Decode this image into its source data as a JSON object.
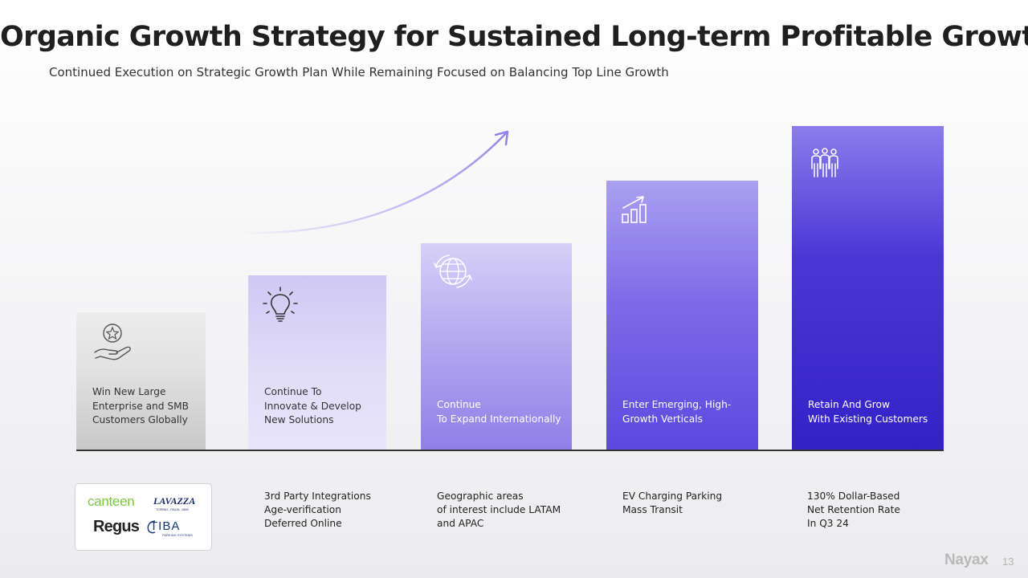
{
  "slide": {
    "title": "Organic Growth Strategy for Sustained Long-term Profitable Growth",
    "subtitle": "Continued Execution on Strategic Growth Plan While Remaining Focused on Balancing Top Line Growth"
  },
  "steps": [
    {
      "icon": "hand-star-icon",
      "label": "Win New Large\nEnterprise and SMB\nCustomers Globally"
    },
    {
      "icon": "lightbulb-icon",
      "label": "Continue To\nInnovate & Develop\nNew Solutions",
      "note": "3rd Party Integrations\nAge-verification\nDeferred Online"
    },
    {
      "icon": "globe-icon",
      "label": "Continue\nTo Expand Internationally",
      "note": "Geographic areas\nof interest include LATAM\nand APAC"
    },
    {
      "icon": "growth-chart-icon",
      "label": "Enter Emerging, High-\nGrowth Verticals",
      "note": "EV Charging Parking\nMass Transit"
    },
    {
      "icon": "people-group-icon",
      "label": "Retain And Grow\nWith Existing Customers",
      "note": "130% Dollar-Based\nNet Retention Rate\nIn Q3 24"
    }
  ],
  "customer_logos": {
    "canteen": "canteen",
    "lavazza": "LAVAZZA",
    "lavazza_tagline": "TORINO, ITALIA, 1895",
    "regus": "Regus",
    "tiba": "TIBA",
    "tiba_tagline": "PARKING SYSTEMS"
  },
  "footer": {
    "brand": "Nayax",
    "page_number": "13"
  },
  "colors": {
    "accent_dark": "#3222c6",
    "accent_light": "#cfc8f4",
    "arrow": "#9f92ec"
  }
}
